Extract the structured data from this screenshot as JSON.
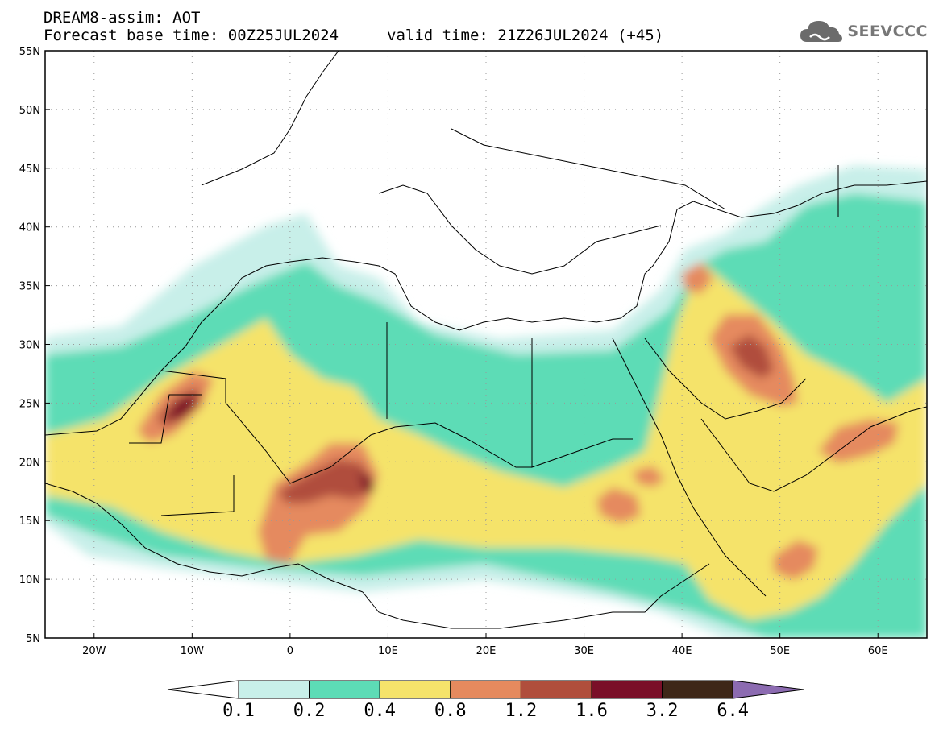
{
  "header": {
    "title": "DREAM8-assim: AOT",
    "base_time": "Forecast base time: 00Z25JUL2024",
    "valid_time": "valid time: 21Z26JUL2024 (+45)"
  },
  "logo": {
    "text": "SEEVCCC",
    "icon": "cloud-icon"
  },
  "axes": {
    "lat_labels": [
      "55N",
      "50N",
      "45N",
      "40N",
      "35N",
      "30N",
      "25N",
      "20N",
      "15N",
      "10N",
      "5N"
    ],
    "lon_labels": [
      "20W",
      "10W",
      "0",
      "10E",
      "20E",
      "30E",
      "40E",
      "50E",
      "60E"
    ],
    "lat_range": [
      5,
      55
    ],
    "lon_range": [
      -25,
      65
    ],
    "grid": "dotted"
  },
  "colorbar": {
    "labels": [
      "0.1",
      "0.2",
      "0.4",
      "0.8",
      "1.2",
      "1.6",
      "3.2",
      "6.4"
    ],
    "colors": [
      "#ffffff",
      "#c8efe9",
      "#5ddcb6",
      "#f5e36b",
      "#e58a5e",
      "#b04e3c",
      "#7a0f28",
      "#3e2718",
      "#8c6bb1"
    ]
  }
}
